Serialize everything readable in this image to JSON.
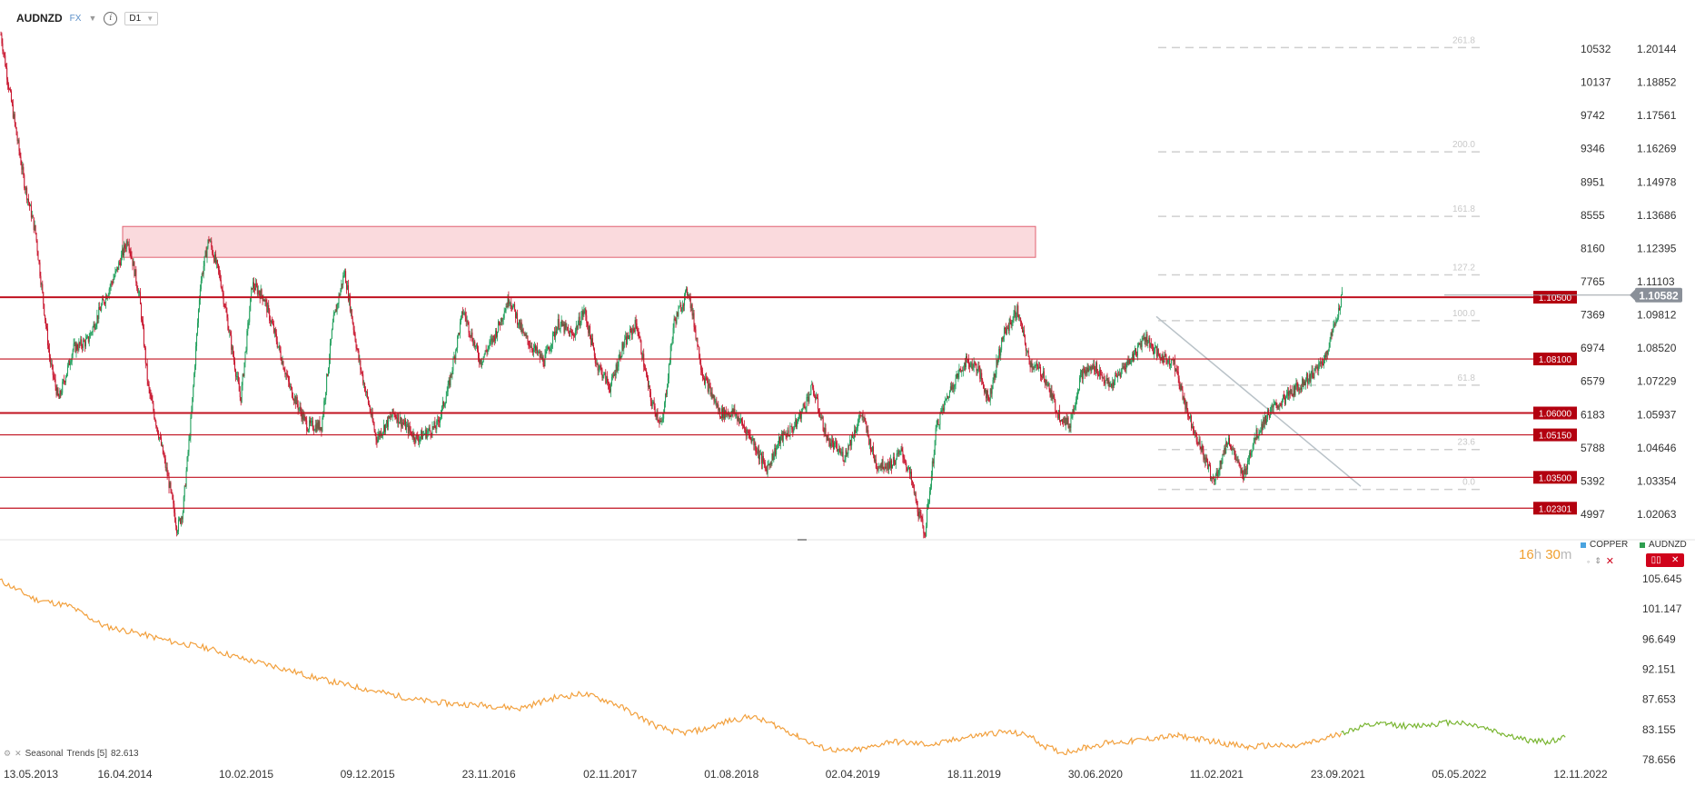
{
  "toolbar": {
    "symbol": "AUDNZD",
    "market": "FX",
    "timeframe": "D1"
  },
  "chart_data": {
    "type": "candlestick",
    "symbol": "AUDNZD",
    "current_price": "1.10582",
    "y_ticks_right": [
      "1.20144",
      "1.18852",
      "1.17561",
      "1.16269",
      "1.14978",
      "1.13686",
      "1.12395",
      "1.11103",
      "1.09812",
      "1.08520",
      "1.07229",
      "1.05937",
      "1.04646",
      "1.03354",
      "1.02063"
    ],
    "y_ticks_inner": [
      "10532",
      "10137",
      "9742",
      "9346",
      "8951",
      "8555",
      "8160",
      "7765",
      "7369",
      "6974",
      "6579",
      "6183",
      "5788",
      "5392",
      "4997"
    ],
    "x_ticks": [
      "13.05.2013",
      "16.04.2014",
      "10.02.2015",
      "09.12.2015",
      "23.11.2016",
      "02.11.2017",
      "01.08.2018",
      "02.04.2019",
      "18.11.2019",
      "30.06.2020",
      "11.02.2021",
      "23.09.2021",
      "05.05.2022",
      "12.11.2022"
    ],
    "horizontal_levels": [
      {
        "label": "1.10500",
        "value": 1.105
      },
      {
        "label": "1.08100",
        "value": 1.081
      },
      {
        "label": "1.06000",
        "value": 1.06
      },
      {
        "label": "1.05150",
        "value": 1.0515
      },
      {
        "label": "1.03500",
        "value": 1.035
      },
      {
        "label": "1.02301",
        "value": 1.02301
      }
    ],
    "resistance_zone": {
      "from": 1.1205,
      "to": 1.1325
    },
    "fibonacci": [
      {
        "label": "261.8",
        "value": 1.202
      },
      {
        "label": "200.0",
        "value": 1.1615
      },
      {
        "label": "161.8",
        "value": 1.1364
      },
      {
        "label": "127.2",
        "value": 1.1137
      },
      {
        "label": "100.0",
        "value": 1.0959
      },
      {
        "label": "61.8",
        "value": 1.0708
      },
      {
        "label": "23.6",
        "value": 1.0458
      },
      {
        "label": "0.0",
        "value": 1.0303
      }
    ],
    "price_path": [
      [
        0,
        1.207
      ],
      [
        15,
        1.185
      ],
      [
        40,
        1.15
      ],
      [
        60,
        1.13
      ],
      [
        75,
        1.1
      ],
      [
        85,
        1.08
      ],
      [
        100,
        1.065
      ],
      [
        125,
        1.085
      ],
      [
        150,
        1.088
      ],
      [
        175,
        1.102
      ],
      [
        200,
        1.115
      ],
      [
        220,
        1.128
      ],
      [
        240,
        1.105
      ],
      [
        255,
        1.07
      ],
      [
        275,
        1.05
      ],
      [
        290,
        1.034
      ],
      [
        305,
        1.015
      ],
      [
        315,
        1.022
      ],
      [
        330,
        1.06
      ],
      [
        345,
        1.11
      ],
      [
        360,
        1.128
      ],
      [
        380,
        1.112
      ],
      [
        400,
        1.085
      ],
      [
        415,
        1.065
      ],
      [
        435,
        1.11
      ],
      [
        455,
        1.105
      ],
      [
        475,
        1.09
      ],
      [
        500,
        1.07
      ],
      [
        530,
        1.055
      ],
      [
        555,
        1.055
      ],
      [
        575,
        1.095
      ],
      [
        595,
        1.115
      ],
      [
        620,
        1.08
      ],
      [
        650,
        1.05
      ],
      [
        680,
        1.06
      ],
      [
        720,
        1.05
      ],
      [
        755,
        1.055
      ],
      [
        775,
        1.07
      ],
      [
        800,
        1.1
      ],
      [
        830,
        1.08
      ],
      [
        855,
        1.09
      ],
      [
        880,
        1.105
      ],
      [
        905,
        1.09
      ],
      [
        940,
        1.08
      ],
      [
        965,
        1.095
      ],
      [
        990,
        1.09
      ],
      [
        1010,
        1.1
      ],
      [
        1030,
        1.08
      ],
      [
        1055,
        1.07
      ],
      [
        1075,
        1.085
      ],
      [
        1100,
        1.095
      ],
      [
        1125,
        1.065
      ],
      [
        1145,
        1.055
      ],
      [
        1165,
        1.095
      ],
      [
        1190,
        1.108
      ],
      [
        1215,
        1.075
      ],
      [
        1245,
        1.06
      ],
      [
        1270,
        1.06
      ],
      [
        1300,
        1.05
      ],
      [
        1325,
        1.038
      ],
      [
        1350,
        1.05
      ],
      [
        1375,
        1.055
      ],
      [
        1405,
        1.07
      ],
      [
        1430,
        1.05
      ],
      [
        1460,
        1.043
      ],
      [
        1490,
        1.06
      ],
      [
        1515,
        1.04
      ],
      [
        1540,
        1.04
      ],
      [
        1560,
        1.045
      ],
      [
        1575,
        1.035
      ],
      [
        1590,
        1.02
      ],
      [
        1600,
        1.013
      ],
      [
        1620,
        1.055
      ],
      [
        1645,
        1.07
      ],
      [
        1670,
        1.08
      ],
      [
        1690,
        1.078
      ],
      [
        1710,
        1.065
      ],
      [
        1735,
        1.09
      ],
      [
        1760,
        1.1
      ],
      [
        1780,
        1.08
      ],
      [
        1805,
        1.075
      ],
      [
        1830,
        1.06
      ],
      [
        1850,
        1.055
      ],
      [
        1870,
        1.075
      ],
      [
        1895,
        1.078
      ],
      [
        1920,
        1.07
      ],
      [
        1945,
        1.078
      ],
      [
        1960,
        1.082
      ],
      [
        1980,
        1.09
      ],
      [
        2005,
        1.082
      ],
      [
        2030,
        1.08
      ],
      [
        2055,
        1.06
      ],
      [
        2080,
        1.045
      ],
      [
        2100,
        1.033
      ],
      [
        2125,
        1.05
      ],
      [
        2150,
        1.035
      ],
      [
        2170,
        1.05
      ],
      [
        2195,
        1.06
      ],
      [
        2220,
        1.065
      ],
      [
        2245,
        1.07
      ],
      [
        2270,
        1.075
      ],
      [
        2290,
        1.08
      ],
      [
        2310,
        1.095
      ],
      [
        2322,
        1.1058
      ]
    ],
    "indicator": {
      "name": "Seasonal",
      "params": "Trends [5]",
      "value": "82.613",
      "y_ticks": [
        "105.645",
        "101.147",
        "96.649",
        "92.151",
        "87.653",
        "83.155",
        "78.656"
      ],
      "series": [
        {
          "name": "history",
          "values": [
            [
              0,
              105.4
            ],
            [
              60,
              102.6
            ],
            [
              120,
              101.6
            ],
            [
              180,
              98.6
            ],
            [
              240,
              97.5
            ],
            [
              300,
              96.2
            ],
            [
              360,
              95.3
            ],
            [
              420,
              93.7
            ],
            [
              480,
              92.5
            ],
            [
              540,
              91.0
            ],
            [
              600,
              89.8
            ],
            [
              660,
              88.7
            ],
            [
              720,
              87.6
            ],
            [
              780,
              87.0
            ],
            [
              840,
              86.8
            ],
            [
              900,
              86.3
            ],
            [
              960,
              87.9
            ],
            [
              1010,
              88.5
            ],
            [
              1060,
              87.2
            ],
            [
              1100,
              85.4
            ],
            [
              1140,
              83.5
            ],
            [
              1180,
              82.6
            ],
            [
              1220,
              83.2
            ],
            [
              1260,
              84.4
            ],
            [
              1300,
              85.1
            ],
            [
              1340,
              83.9
            ],
            [
              1380,
              82.2
            ],
            [
              1420,
              80.5
            ],
            [
              1460,
              79.9
            ],
            [
              1500,
              80.3
            ],
            [
              1540,
              81.4
            ],
            [
              1580,
              81.1
            ],
            [
              1620,
              80.9
            ],
            [
              1660,
              81.8
            ],
            [
              1700,
              82.4
            ],
            [
              1740,
              82.8
            ],
            [
              1780,
              82.3
            ],
            [
              1810,
              80.6
            ],
            [
              1840,
              79.7
            ],
            [
              1880,
              80.5
            ],
            [
              1920,
              81.2
            ],
            [
              1960,
              81.4
            ],
            [
              2000,
              81.9
            ],
            [
              2040,
              82.2
            ],
            [
              2080,
              81.7
            ],
            [
              2120,
              81.1
            ],
            [
              2160,
              80.5
            ],
            [
              2200,
              80.8
            ],
            [
              2240,
              80.6
            ],
            [
              2280,
              81.4
            ],
            [
              2322,
              82.6
            ]
          ]
        },
        {
          "name": "forecast",
          "values": [
            [
              2322,
              82.6
            ],
            [
              2360,
              83.6
            ],
            [
              2400,
              84.0
            ],
            [
              2440,
              83.6
            ],
            [
              2480,
              84.0
            ],
            [
              2520,
              84.3
            ],
            [
              2560,
              83.7
            ],
            [
              2600,
              82.6
            ],
            [
              2640,
              81.6
            ],
            [
              2680,
              81.3
            ],
            [
              2710,
              82.0
            ]
          ]
        }
      ]
    }
  },
  "countdown": {
    "hours": "16",
    "hours_unit": "h",
    "minutes": "30",
    "minutes_unit": "m"
  },
  "legend": {
    "copper_label": "COPPER",
    "audnzd_label": "AUDNZD",
    "copper_color": "#4aa3df",
    "audnzd_color": "#2e9e4f"
  },
  "colors": {
    "bull": "#1e9e5a",
    "bear": "#c7112a",
    "level": "#c0111f",
    "zone_fill": "#f7c6cb",
    "zone_stroke": "#e06070",
    "fib": "#cfcfcf",
    "indicator": "#f2a03d",
    "forecast": "#79b531",
    "price_tag": "#8a9099"
  },
  "icons": {
    "info": "info-icon",
    "timeframe_dropdown": "chevron-down-icon",
    "eye": "eye-icon",
    "move": "move-icon",
    "close": "close-icon",
    "indicator_settings": "settings-icon"
  }
}
